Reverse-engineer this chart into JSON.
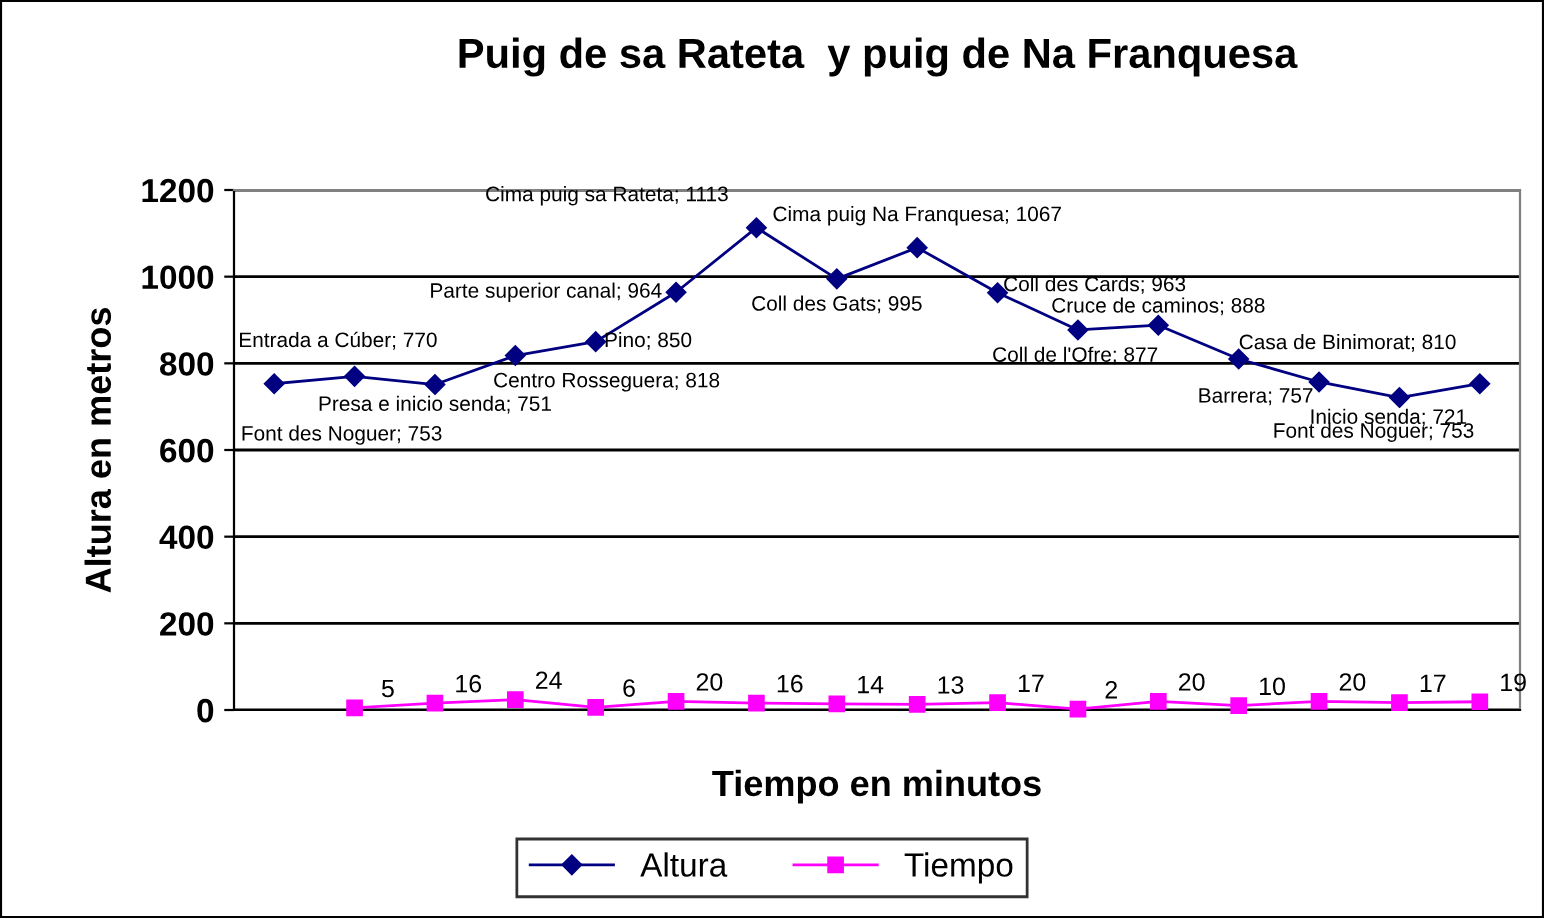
{
  "chart_data": {
    "type": "line",
    "title": "Puig de sa Rateta  y puig de Na Franquesa",
    "xlabel": "Tiempo en minutos",
    "ylabel": "Altura en metros",
    "categories": [
      null,
      null,
      null,
      null,
      null,
      null,
      null,
      null,
      null,
      null,
      null,
      null,
      null,
      null,
      null,
      null
    ],
    "series": [
      {
        "name": "Altura",
        "color": "#000080",
        "marker": "diamond",
        "values": [
          753,
          770,
          751,
          818,
          850,
          964,
          1113,
          995,
          1067,
          963,
          877,
          888,
          810,
          757,
          721,
          753
        ],
        "value_labels": [
          "Font des Noguer; 753",
          "Entrada a Cúber; 770",
          "Presa e inicio senda; 751",
          "Centro Rosseguera; 818",
          "Pino; 850",
          "Parte superior canal; 964",
          "Cima puig sa Rateta; 1113",
          "Coll des Gats; 995",
          "Cima puig Na Franquesa; 1067",
          "Coll des Cards; 963",
          "Coll de l'Ofre; 877",
          "Cruce de caminos; 888",
          "Casa de Binimorat; 810",
          "Barrera; 757",
          "Inicio senda; 721",
          "Font des Noguer; 753"
        ]
      },
      {
        "name": "Tiempo",
        "color": "#ff00ff",
        "marker": "square",
        "values": [
          null,
          5,
          16,
          24,
          6,
          20,
          16,
          14,
          13,
          17,
          2,
          20,
          10,
          20,
          17,
          19
        ],
        "data_labels": true
      }
    ],
    "ylim": [
      0,
      1200
    ],
    "yticks": [
      0,
      200,
      400,
      600,
      800,
      1000,
      1200
    ],
    "grid": "y",
    "legend": "bottom"
  }
}
